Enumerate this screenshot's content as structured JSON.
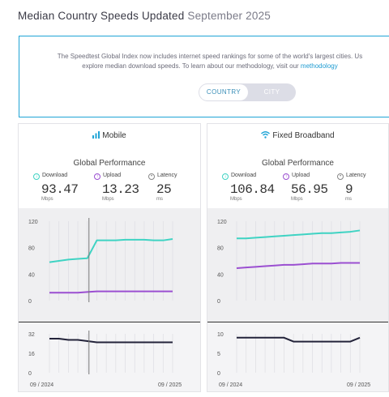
{
  "header": {
    "title": "Median Country Speeds Updated",
    "date": "September 2025"
  },
  "info": {
    "line1": "The Speedtest Global Index now includes internet speed rankings for some of the world's largest cities. Us",
    "line2_prefix": "explore median download speeds. To learn about our methodology, visit our ",
    "line2_link": "methodology"
  },
  "toggle": {
    "country": "COUNTRY",
    "city": "CITY"
  },
  "cards": {
    "mobile": {
      "title": "Mobile",
      "section": "Global Performance",
      "metrics": {
        "download": {
          "label": "Download",
          "value": "93.47",
          "unit": "Mbps"
        },
        "upload": {
          "label": "Upload",
          "value": "13.23",
          "unit": "Mbps"
        },
        "latency": {
          "label": "Latency",
          "value": "25",
          "unit": "ms"
        }
      },
      "axis_x": {
        "start": "09 / 2024",
        "end": "09 / 2025"
      }
    },
    "broadband": {
      "title": "Fixed Broadband",
      "section": "Global Performance",
      "metrics": {
        "download": {
          "label": "Download",
          "value": "106.84",
          "unit": "Mbps"
        },
        "upload": {
          "label": "Upload",
          "value": "56.95",
          "unit": "Mbps"
        },
        "latency": {
          "label": "Latency",
          "value": "9",
          "unit": "ms"
        }
      },
      "axis_x": {
        "start": "09 / 2024",
        "end": "09 / 2025"
      }
    }
  },
  "colors": {
    "download": "#3fd3c3",
    "upload": "#9b4fd1",
    "latency": "#23233a",
    "accent": "#20a4d6"
  },
  "chart_data": [
    {
      "type": "line",
      "ylim": [
        0,
        120
      ],
      "yticks": [
        "120",
        "80",
        "40",
        "0"
      ],
      "series": [
        {
          "values": [
            58,
            60,
            62,
            63,
            64,
            91,
            91,
            91,
            92,
            92,
            92,
            91,
            91,
            93
          ]
        },
        {
          "values": [
            12,
            12,
            12,
            12,
            13,
            14,
            14,
            14,
            14,
            14,
            14,
            14,
            14,
            14
          ]
        }
      ]
    },
    {
      "type": "line",
      "ylim": [
        0,
        32
      ],
      "yticks": [
        "32",
        "16",
        "0"
      ],
      "series": [
        {
          "values": [
            28,
            28,
            27,
            27,
            26,
            25,
            25,
            25,
            25,
            25,
            25,
            25,
            25,
            25
          ]
        }
      ]
    },
    {
      "type": "line",
      "ylim": [
        0,
        120
      ],
      "yticks": [
        "120",
        "80",
        "40",
        "0"
      ],
      "series": [
        {
          "values": [
            94,
            94,
            95,
            96,
            97,
            98,
            99,
            100,
            101,
            102,
            102,
            103,
            104,
            106
          ]
        },
        {
          "values": [
            49,
            50,
            51,
            52,
            53,
            54,
            54,
            55,
            56,
            56,
            56,
            57,
            57,
            57
          ]
        }
      ]
    },
    {
      "type": "line",
      "ylim": [
        0,
        10
      ],
      "yticks": [
        "10",
        "5",
        "0"
      ],
      "series": [
        {
          "values": [
            9,
            9,
            9,
            9,
            9,
            9,
            8,
            8,
            8,
            8,
            8,
            8,
            8,
            9
          ]
        }
      ]
    }
  ]
}
